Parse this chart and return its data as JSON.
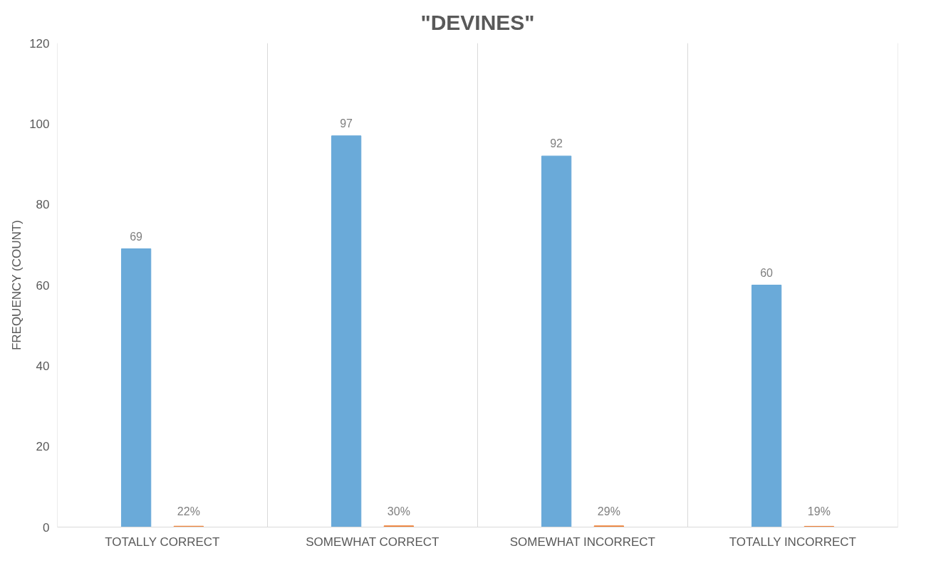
{
  "chart_data": {
    "type": "bar",
    "title": "\"DEVINES\"",
    "ylabel": "FREQUENCY (COUNT)",
    "categories": [
      "TOTALLY CORRECT",
      "SOMEWHAT CORRECT",
      "SOMEWHAT INCORRECT",
      "TOTALLY INCORRECT"
    ],
    "series": [
      {
        "color": "#6aaad9",
        "values": [
          69,
          97,
          92,
          60
        ],
        "value_labels": [
          "69",
          "97",
          "92",
          "60"
        ]
      },
      {
        "color": "#ed7d31",
        "values": [
          0.22,
          0.3,
          0.29,
          0.19
        ],
        "value_labels": [
          "22%",
          "30%",
          "29%",
          "19%"
        ]
      }
    ],
    "ylim": [
      0,
      120
    ],
    "yticks": [
      0,
      20,
      40,
      60,
      80,
      100,
      120
    ],
    "grid": "x"
  }
}
